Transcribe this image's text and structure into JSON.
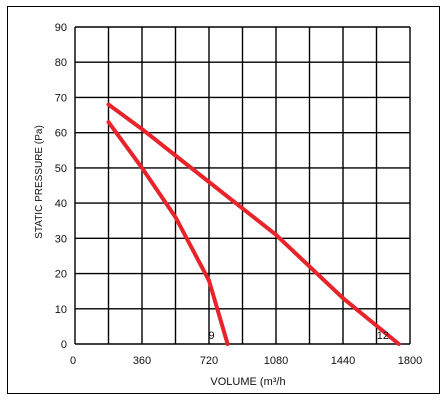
{
  "chart_data": {
    "type": "line",
    "title": "",
    "xlabel": "VOLUME (m³/h",
    "ylabel": "STATIC PRESSURE (Pa)",
    "x_ticks": [
      "0",
      "360",
      "720",
      "1080",
      "1440",
      "1800"
    ],
    "y_ticks": [
      "0",
      "10",
      "20",
      "30",
      "40",
      "50",
      "60",
      "70",
      "80",
      "90"
    ],
    "xlim": [
      0,
      1800
    ],
    "ylim": [
      0,
      90
    ],
    "grid": true,
    "line_color": "#e8232a",
    "grid_color": "#000000",
    "series": [
      {
        "name": "9",
        "x": [
          180,
          360,
          540,
          720,
          820
        ],
        "y": [
          63,
          50,
          36,
          18,
          0
        ]
      },
      {
        "name": "12",
        "x": [
          180,
          360,
          720,
          1080,
          1440,
          1740
        ],
        "y": [
          68,
          61,
          46,
          31,
          13,
          0
        ]
      }
    ]
  }
}
